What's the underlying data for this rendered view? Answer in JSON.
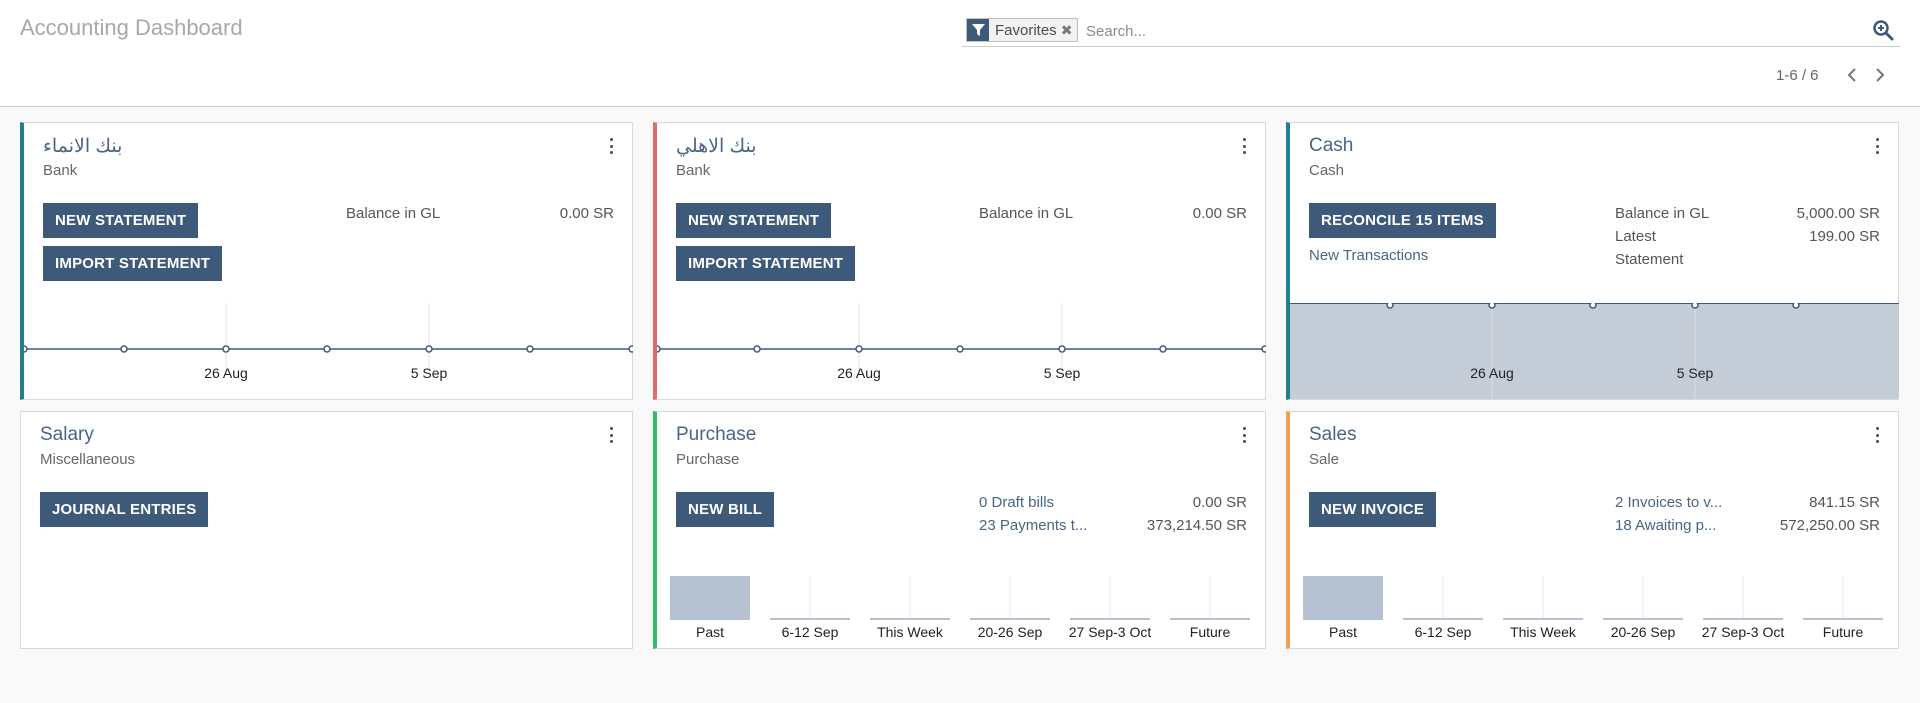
{
  "header": {
    "title": "Accounting Dashboard",
    "facet_label": "Favorites",
    "search_placeholder": "Search...",
    "pager": "1-6 / 6"
  },
  "colors": {
    "primary": "#3e5a7a",
    "teal": "#21808f",
    "red": "#e16a6a",
    "green": "#2ebd6b",
    "orange": "#f0a055",
    "graph_fill": "#c4ccd8",
    "graph_line": "#3e5a7a"
  },
  "cards": {
    "bank1": {
      "title": "بنك الانماء",
      "type": "Bank",
      "btn1": "NEW STATEMENT",
      "btn2": "IMPORT STATEMENT",
      "balance_label": "Balance in GL",
      "balance_value": "0.00 SR",
      "tick1": "26 Aug",
      "tick2": "5 Sep"
    },
    "bank2": {
      "title": "بنك الاهلي",
      "type": "Bank",
      "btn1": "NEW STATEMENT",
      "btn2": "IMPORT STATEMENT",
      "balance_label": "Balance in GL",
      "balance_value": "0.00 SR",
      "tick1": "26 Aug",
      "tick2": "5 Sep"
    },
    "cash": {
      "title": "Cash",
      "type": "Cash",
      "btn1": "RECONCILE 15 ITEMS",
      "new_transactions": "New Transactions",
      "balance_label": "Balance in GL",
      "balance_value": "5,000.00 SR",
      "latest_label_1": "Latest",
      "latest_label_2": "Statement",
      "latest_value": "199.00 SR",
      "tick1": "26 Aug",
      "tick2": "5 Sep"
    },
    "salary": {
      "title": "Salary",
      "type": "Miscellaneous",
      "btn1": "JOURNAL ENTRIES"
    },
    "purchase": {
      "title": "Purchase",
      "type": "Purchase",
      "btn1": "NEW BILL",
      "stat1_label": "0 Draft bills",
      "stat1_value": "0.00 SR",
      "stat2_label": "23 Payments t...",
      "stat2_value": "373,214.50 SR",
      "bars": [
        "Past",
        "6-12 Sep",
        "This Week",
        "20-26 Sep",
        "27 Sep-3 Oct",
        "Future"
      ]
    },
    "sales": {
      "title": "Sales",
      "type": "Sale",
      "btn1": "NEW INVOICE",
      "stat1_label": "2 Invoices to v...",
      "stat1_value": "841.15 SR",
      "stat2_label": "18 Awaiting p...",
      "stat2_value": "572,250.00 SR",
      "bars": [
        "Past",
        "6-12 Sep",
        "This Week",
        "20-26 Sep",
        "27 Sep-3 Oct",
        "Future"
      ]
    }
  }
}
